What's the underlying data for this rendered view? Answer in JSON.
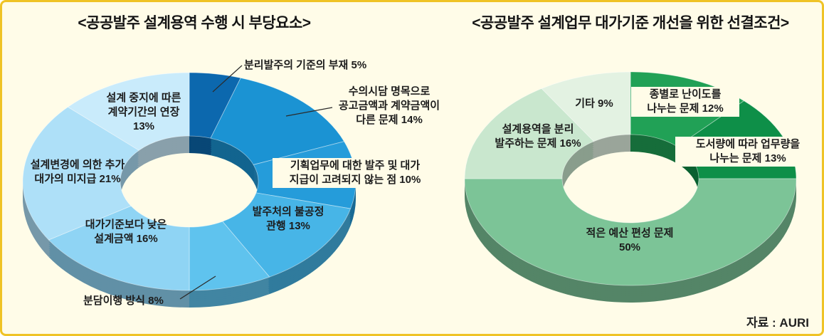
{
  "page": {
    "background_color": "#FFFCE8",
    "border_color": "#EFC326",
    "source": "자료 : AURI"
  },
  "chart_data": [
    {
      "type": "pie",
      "donut": true,
      "title": "<공공발주 설계용역 수행 시 부당요소>",
      "legend_position": "around",
      "segments": [
        {
          "label": "분리발주의 기준의 부재",
          "value": 5,
          "display": "분리발주의 기준의 부재 5%",
          "color": "#0C68AE"
        },
        {
          "label": "수의시담 명목으로 공고금액과 계약금액이 다른 문제",
          "value": 14,
          "display": "수의시담 명목으로\n공고금액과 계약금액이\n다른 문제 14%",
          "color": "#1B93D3"
        },
        {
          "label": "기획업무에 대한 발주 및 대가 지급이 고려되지 않는 점",
          "value": 10,
          "display": "기획업무에 대한 발주 및 대가\n지급이 고려되지 않는 점 10%",
          "color": "#259CDA"
        },
        {
          "label": "발주처의 불공정 관행",
          "value": 13,
          "display": "발주처의 불공정\n관행 13%",
          "color": "#47B5E7"
        },
        {
          "label": "분담이행 방식",
          "value": 8,
          "display": "분담이행 방식 8%",
          "color": "#5FC3EE"
        },
        {
          "label": "대가기준보다 낮은 설계금액",
          "value": 16,
          "display": "대가기준보다 낮은\n설계금액 16%",
          "color": "#8FD4F4"
        },
        {
          "label": "설계변경에 의한 추가 대가의 미지급",
          "value": 21,
          "display": "설계변경에 의한 추가\n대가의 미지급 21%",
          "color": "#AEE0F8"
        },
        {
          "label": "설계 중지에 따른 계약기간의 연장",
          "value": 13,
          "display": "설계 중지에 따른\n계약기간의 연장\n13%",
          "color": "#C9EBFB"
        }
      ]
    },
    {
      "type": "pie",
      "donut": true,
      "title": "<공공발주 설계업무 대가기준 개선을 위한 선결조건>",
      "legend_position": "around",
      "segments": [
        {
          "label": "종별로 난이도를 나누는 문제",
          "value": 12,
          "display": "종별로 난이도를\n나누는 문제 12%",
          "color": "#21A156"
        },
        {
          "label": "도서량에 따라 업무량을 나누는 문제",
          "value": 13,
          "display": "도서량에 따라 업무량을\n나누는 문제 13%",
          "color": "#0E8F48"
        },
        {
          "label": "적은 예산 편성 문제",
          "value": 50,
          "display": "적은 예산 편성 문제\n50%",
          "color": "#7CC497"
        },
        {
          "label": "설계용역을 분리 발주하는 문제",
          "value": 16,
          "display": "설계용역을 분리\n발주하는 문제 16%",
          "color": "#C9E7CE"
        },
        {
          "label": "기타",
          "value": 9,
          "display": "기타 9%",
          "color": "#E3F2E2"
        }
      ]
    }
  ]
}
